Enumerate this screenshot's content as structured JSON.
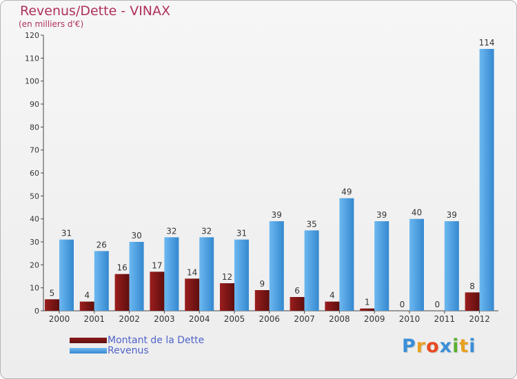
{
  "chart_data": {
    "type": "bar",
    "title": "Revenus/Dette - VINAX",
    "subtitle": "(en milliers d'€)",
    "categories": [
      "2000",
      "2001",
      "2002",
      "2003",
      "2004",
      "2005",
      "2006",
      "2007",
      "2008",
      "2009",
      "2010",
      "2011",
      "2012"
    ],
    "series": [
      {
        "name": "Montant de la Dette",
        "color": "#7a1414",
        "values": [
          5,
          4,
          16,
          17,
          14,
          12,
          9,
          6,
          4,
          1,
          0,
          0,
          8
        ]
      },
      {
        "name": "Revenus",
        "color": "#4a9fe0",
        "values": [
          31,
          26,
          30,
          32,
          32,
          31,
          39,
          35,
          49,
          39,
          40,
          39,
          114
        ]
      }
    ],
    "ylim": [
      0,
      120
    ],
    "yticks": [
      0,
      10,
      20,
      30,
      40,
      50,
      60,
      70,
      80,
      90,
      100,
      110,
      120
    ],
    "grid": false,
    "legend": "bottom-left",
    "data_labels": true
  },
  "logo": {
    "letters": [
      "P",
      "r",
      "o",
      "x",
      "i",
      "t",
      "i"
    ],
    "colors": [
      "#3a8fd8",
      "#e8a020",
      "#e84a20",
      "#3a8fd8",
      "#5ab030",
      "#e8a020",
      "#3a8fd8"
    ]
  }
}
